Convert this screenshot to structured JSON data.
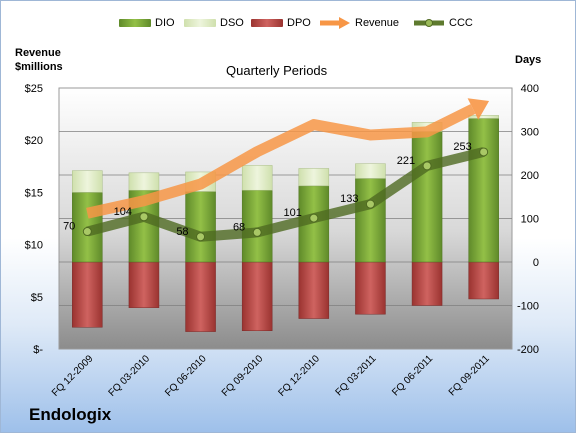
{
  "chart_data": {
    "type": "bar+line",
    "title": "Quarterly Periods",
    "company": "Endologix",
    "left_axis_label_line1": "Revenue",
    "left_axis_label_line2": "$millions",
    "right_axis_label": "Days",
    "categories": [
      "FQ 12-2009",
      "FQ 03-2010",
      "FQ 06-2010",
      "FQ 09-2010",
      "FQ 12-2010",
      "FQ 03-2011",
      "FQ 06-2011",
      "FQ 09-2011"
    ],
    "left_axis": {
      "min": 0,
      "max": 25,
      "step": 5,
      "tick_labels": [
        "$-",
        "$5",
        "$10",
        "$15",
        "$20",
        "$25"
      ]
    },
    "right_axis": {
      "min": -200,
      "max": 400,
      "step": 100,
      "tick_labels": [
        "-200",
        "-100",
        "0",
        "100",
        "200",
        "300",
        "400"
      ]
    },
    "series": [
      {
        "name": "DIO",
        "axis": "right",
        "kind": "stacked-bar",
        "color": "#76a33a",
        "values": [
          160,
          165,
          162,
          165,
          175,
          192,
          300,
          330
        ]
      },
      {
        "name": "DSO",
        "axis": "right",
        "kind": "stacked-bar",
        "color": "#dbe9c2",
        "values": [
          50,
          40,
          45,
          57,
          40,
          34,
          21,
          7
        ]
      },
      {
        "name": "DPO",
        "axis": "right",
        "kind": "bar-negative",
        "color": "#c0504d",
        "values": [
          -150,
          -105,
          -160,
          -158,
          -130,
          -120,
          -100,
          -85
        ]
      },
      {
        "name": "Revenue",
        "axis": "left",
        "kind": "line",
        "color": "#f79646",
        "values": [
          13,
          14.2,
          15.8,
          18.9,
          21.5,
          20.5,
          20.8,
          23.5
        ]
      },
      {
        "name": "CCC",
        "axis": "right",
        "kind": "line",
        "color": "#5e7a2e",
        "values": [
          70,
          104,
          58,
          68,
          101,
          133,
          221,
          253
        ]
      }
    ],
    "data_labels": [
      "70",
      "104",
      "58",
      "68",
      "101",
      "133",
      "221",
      "253"
    ],
    "legend_position": "top",
    "grid": true
  }
}
